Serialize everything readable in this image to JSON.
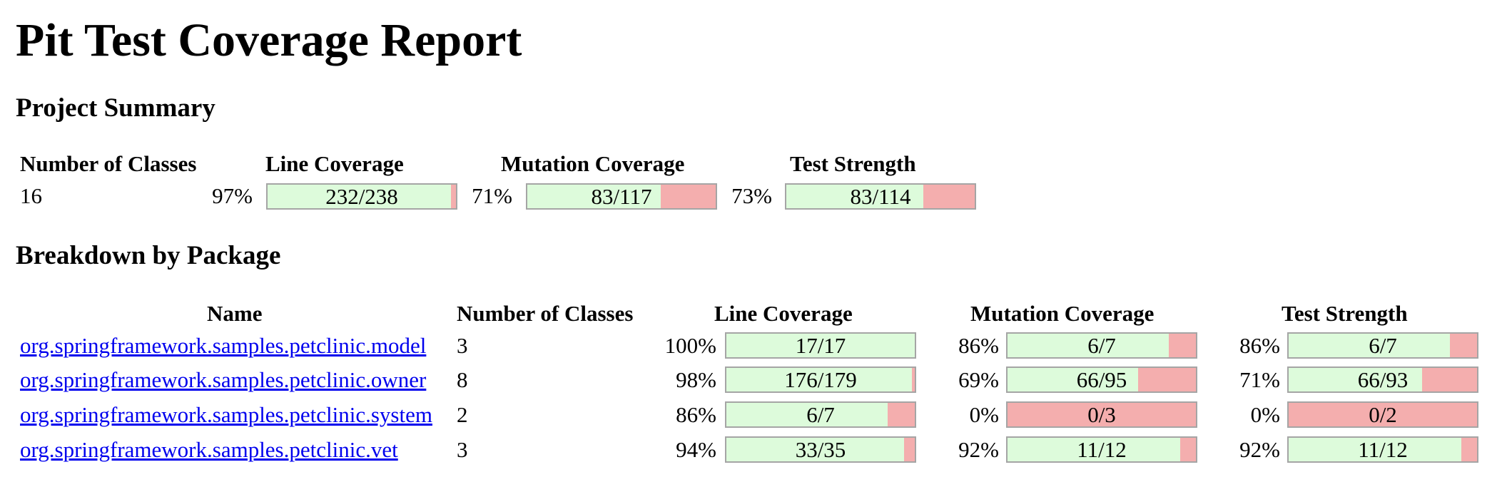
{
  "report_title": "Pit Test Coverage Report",
  "project_summary": {
    "heading": "Project Summary",
    "headers": {
      "classes": "Number of Classes",
      "line": "Line Coverage",
      "mutation": "Mutation Coverage",
      "strength": "Test Strength"
    },
    "classes": "16",
    "line": {
      "percent": "97%",
      "label": "232/238",
      "fraction": 0.9748
    },
    "mutation": {
      "percent": "71%",
      "label": "83/117",
      "fraction": 0.7094
    },
    "strength": {
      "percent": "73%",
      "label": "83/114",
      "fraction": 0.7281
    }
  },
  "breakdown": {
    "heading": "Breakdown by Package",
    "headers": {
      "name": "Name",
      "classes": "Number of Classes",
      "line": "Line Coverage",
      "mutation": "Mutation Coverage",
      "strength": "Test Strength"
    },
    "rows": [
      {
        "name": "org.springframework.samples.petclinic.model",
        "classes": "3",
        "line": {
          "percent": "100%",
          "label": "17/17",
          "fraction": 1.0
        },
        "mutation": {
          "percent": "86%",
          "label": "6/7",
          "fraction": 0.8571
        },
        "strength": {
          "percent": "86%",
          "label": "6/7",
          "fraction": 0.8571
        }
      },
      {
        "name": "org.springframework.samples.petclinic.owner",
        "classes": "8",
        "line": {
          "percent": "98%",
          "label": "176/179",
          "fraction": 0.9832
        },
        "mutation": {
          "percent": "69%",
          "label": "66/95",
          "fraction": 0.6947
        },
        "strength": {
          "percent": "71%",
          "label": "66/93",
          "fraction": 0.7097
        }
      },
      {
        "name": "org.springframework.samples.petclinic.system",
        "classes": "2",
        "line": {
          "percent": "86%",
          "label": "6/7",
          "fraction": 0.8571
        },
        "mutation": {
          "percent": "0%",
          "label": "0/3",
          "fraction": 0.0
        },
        "strength": {
          "percent": "0%",
          "label": "0/2",
          "fraction": 0.0
        }
      },
      {
        "name": "org.springframework.samples.petclinic.vet",
        "classes": "3",
        "line": {
          "percent": "94%",
          "label": "33/35",
          "fraction": 0.9429
        },
        "mutation": {
          "percent": "92%",
          "label": "11/12",
          "fraction": 0.9167
        },
        "strength": {
          "percent": "92%",
          "label": "11/12",
          "fraction": 0.9167
        }
      }
    ]
  },
  "colors": {
    "covered": "#ddfbdb",
    "uncovered": "#f4aeae",
    "bar_border": "#a5a5a5",
    "link": "#0000ee"
  }
}
